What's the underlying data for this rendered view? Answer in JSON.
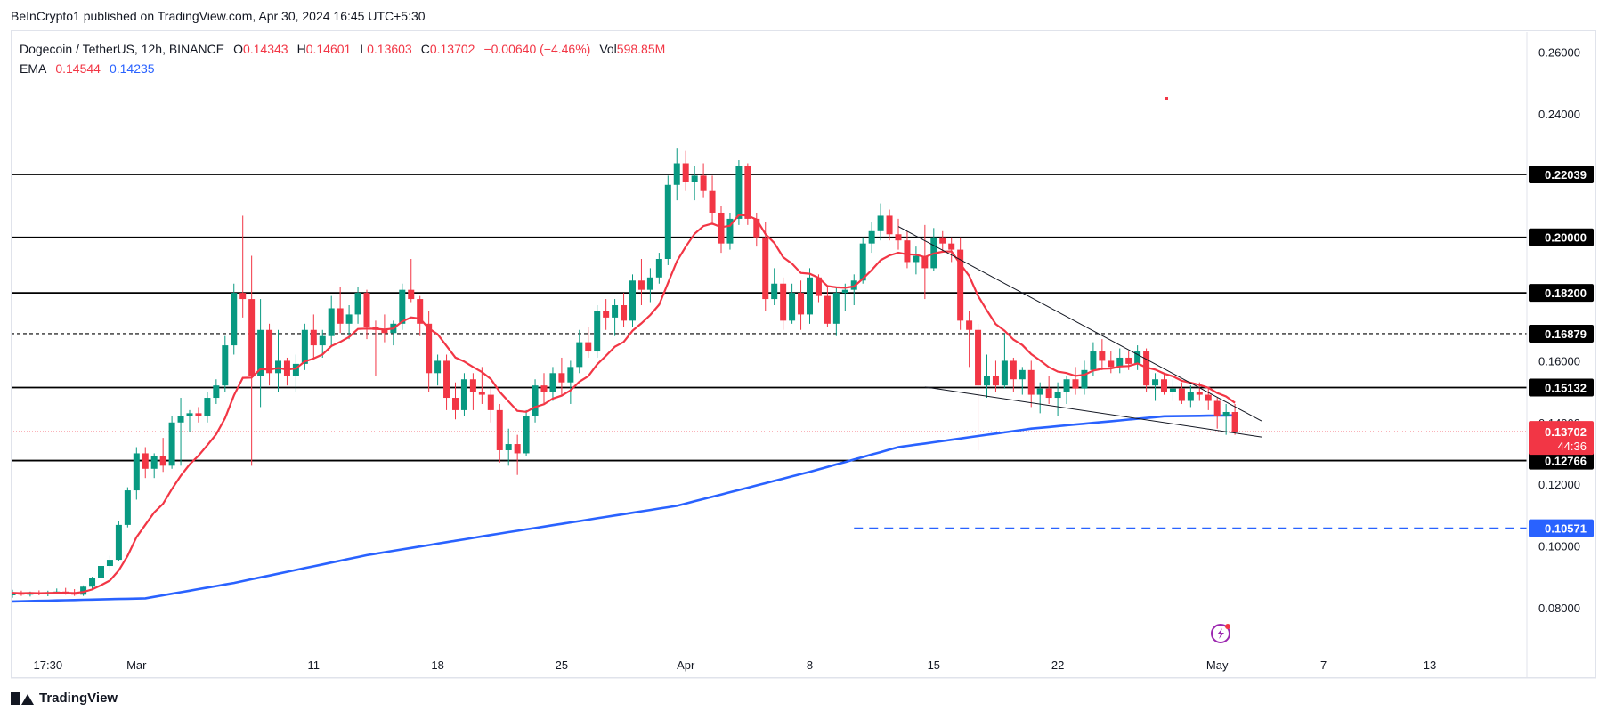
{
  "header": {
    "published": "BeInCrypto1 published on TradingView.com, Apr 30, 2024 16:45 UTC+5:30"
  },
  "legend": {
    "symbol": "Dogecoin / TetherUS, 12h, BINANCE",
    "open_label": "O",
    "open": "0.14343",
    "high_label": "H",
    "high": "0.14601",
    "low_label": "L",
    "low": "0.13603",
    "close_label": "C",
    "close": "0.13702",
    "change": "−0.00640 (−4.46%)",
    "vol_label": "Vol",
    "vol": "598.85M",
    "ema_label": "EMA",
    "ema_fast": "0.14544",
    "ema_slow": "0.14235"
  },
  "footer": {
    "brand": "TradingView"
  },
  "chart_data": {
    "type": "candlestick",
    "title": "Dogecoin / TetherUS, 12h, BINANCE",
    "ylim": [
      0.07,
      0.27
    ],
    "y_ticks": [
      "0.08000",
      "0.10000",
      "0.12000",
      "0.14000",
      "0.16000",
      "0.24000",
      "0.26000"
    ],
    "y_tick_values": [
      0.08,
      0.1,
      0.12,
      0.14,
      0.16,
      0.24,
      0.26
    ],
    "x_labels": [
      {
        "label": "17:30",
        "candle": 4
      },
      {
        "label": "Mar",
        "candle": 14
      },
      {
        "label": "11",
        "candle": 34
      },
      {
        "label": "18",
        "candle": 48
      },
      {
        "label": "25",
        "candle": 62
      },
      {
        "label": "Apr",
        "candle": 76
      },
      {
        "label": "8",
        "candle": 90
      },
      {
        "label": "15",
        "candle": 104
      },
      {
        "label": "22",
        "candle": 118
      },
      {
        "label": "May",
        "candle": 136
      },
      {
        "label": "7",
        "candle": 148
      },
      {
        "label": "13",
        "candle": 160
      }
    ],
    "candle_count_axis": 170,
    "levels": [
      {
        "value": 0.22039,
        "label": "0.22039",
        "style": "solid"
      },
      {
        "value": 0.2,
        "label": "0.20000",
        "style": "solid"
      },
      {
        "value": 0.182,
        "label": "0.18200",
        "style": "solid"
      },
      {
        "value": 0.16879,
        "label": "0.16879",
        "style": "dashed"
      },
      {
        "value": 0.15132,
        "label": "0.15132",
        "style": "solid"
      },
      {
        "value": 0.12766,
        "label": "0.12766",
        "style": "solid"
      }
    ],
    "target_level": {
      "value": 0.10571,
      "label": "0.10571",
      "from_candle": 95,
      "color": "#2962ff"
    },
    "last_price": {
      "value": 0.13702,
      "label": "0.13702",
      "countdown": "44:36",
      "color": "#f23645"
    },
    "trendlines": [
      {
        "from": [
          100,
          0.2035
        ],
        "to": [
          141,
          0.1405
        ]
      },
      {
        "from": [
          103,
          0.1515
        ],
        "to": [
          141,
          0.1353
        ]
      }
    ],
    "candles": [
      [
        0.084,
        0.0858,
        0.0832,
        0.0848
      ],
      [
        0.0848,
        0.0855,
        0.0838,
        0.0842
      ],
      [
        0.0842,
        0.0852,
        0.0836,
        0.0849
      ],
      [
        0.0849,
        0.0856,
        0.084,
        0.0845
      ],
      [
        0.0845,
        0.0855,
        0.0837,
        0.085
      ],
      [
        0.085,
        0.0862,
        0.0844,
        0.0852
      ],
      [
        0.0852,
        0.0864,
        0.0842,
        0.0848
      ],
      [
        0.0848,
        0.086,
        0.0838,
        0.0842
      ],
      [
        0.0842,
        0.0872,
        0.0838,
        0.0868
      ],
      [
        0.0868,
        0.09,
        0.086,
        0.0895
      ],
      [
        0.0895,
        0.0945,
        0.089,
        0.0935
      ],
      [
        0.0935,
        0.0968,
        0.0918,
        0.0955
      ],
      [
        0.0955,
        0.108,
        0.095,
        0.1068
      ],
      [
        0.1068,
        0.119,
        0.106,
        0.118
      ],
      [
        0.118,
        0.132,
        0.115,
        0.13
      ],
      [
        0.13,
        0.132,
        0.122,
        0.125
      ],
      [
        0.125,
        0.13,
        0.122,
        0.129
      ],
      [
        0.129,
        0.135,
        0.124,
        0.126
      ],
      [
        0.126,
        0.142,
        0.125,
        0.14
      ],
      [
        0.14,
        0.148,
        0.126,
        0.142
      ],
      [
        0.142,
        0.144,
        0.137,
        0.143
      ],
      [
        0.143,
        0.145,
        0.14,
        0.142
      ],
      [
        0.142,
        0.15,
        0.14,
        0.148
      ],
      [
        0.148,
        0.154,
        0.146,
        0.152
      ],
      [
        0.152,
        0.168,
        0.15,
        0.165
      ],
      [
        0.165,
        0.185,
        0.162,
        0.182
      ],
      [
        0.182,
        0.207,
        0.174,
        0.18
      ],
      [
        0.18,
        0.194,
        0.126,
        0.155
      ],
      [
        0.155,
        0.18,
        0.145,
        0.17
      ],
      [
        0.17,
        0.172,
        0.152,
        0.156
      ],
      [
        0.156,
        0.17,
        0.15,
        0.16
      ],
      [
        0.16,
        0.161,
        0.152,
        0.155
      ],
      [
        0.155,
        0.162,
        0.15,
        0.159
      ],
      [
        0.159,
        0.172,
        0.157,
        0.17
      ],
      [
        0.17,
        0.175,
        0.161,
        0.165
      ],
      [
        0.165,
        0.17,
        0.161,
        0.168
      ],
      [
        0.168,
        0.181,
        0.165,
        0.177
      ],
      [
        0.177,
        0.184,
        0.169,
        0.172
      ],
      [
        0.172,
        0.178,
        0.167,
        0.175
      ],
      [
        0.175,
        0.184,
        0.172,
        0.182
      ],
      [
        0.182,
        0.183,
        0.167,
        0.171
      ],
      [
        0.171,
        0.173,
        0.155,
        0.17
      ],
      [
        0.17,
        0.175,
        0.166,
        0.169
      ],
      [
        0.169,
        0.173,
        0.165,
        0.172
      ],
      [
        0.172,
        0.185,
        0.17,
        0.183
      ],
      [
        0.183,
        0.193,
        0.179,
        0.18
      ],
      [
        0.18,
        0.181,
        0.168,
        0.172
      ],
      [
        0.172,
        0.176,
        0.15,
        0.156
      ],
      [
        0.156,
        0.162,
        0.152,
        0.16
      ],
      [
        0.16,
        0.162,
        0.144,
        0.148
      ],
      [
        0.148,
        0.153,
        0.141,
        0.144
      ],
      [
        0.144,
        0.156,
        0.142,
        0.154
      ],
      [
        0.154,
        0.156,
        0.144,
        0.15
      ],
      [
        0.15,
        0.158,
        0.146,
        0.149
      ],
      [
        0.149,
        0.151,
        0.14,
        0.144
      ],
      [
        0.144,
        0.146,
        0.127,
        0.131
      ],
      [
        0.131,
        0.138,
        0.126,
        0.133
      ],
      [
        0.133,
        0.136,
        0.123,
        0.13
      ],
      [
        0.13,
        0.144,
        0.129,
        0.142
      ],
      [
        0.142,
        0.154,
        0.14,
        0.152
      ],
      [
        0.152,
        0.156,
        0.146,
        0.15
      ],
      [
        0.15,
        0.158,
        0.147,
        0.156
      ],
      [
        0.156,
        0.161,
        0.149,
        0.153
      ],
      [
        0.153,
        0.16,
        0.146,
        0.158
      ],
      [
        0.158,
        0.17,
        0.156,
        0.166
      ],
      [
        0.166,
        0.171,
        0.161,
        0.163
      ],
      [
        0.163,
        0.178,
        0.161,
        0.176
      ],
      [
        0.176,
        0.18,
        0.17,
        0.174
      ],
      [
        0.174,
        0.18,
        0.168,
        0.178
      ],
      [
        0.178,
        0.182,
        0.171,
        0.173
      ],
      [
        0.173,
        0.188,
        0.171,
        0.186
      ],
      [
        0.186,
        0.193,
        0.178,
        0.183
      ],
      [
        0.183,
        0.19,
        0.179,
        0.187
      ],
      [
        0.187,
        0.195,
        0.185,
        0.193
      ],
      [
        0.193,
        0.22,
        0.191,
        0.217
      ],
      [
        0.217,
        0.229,
        0.212,
        0.224
      ],
      [
        0.224,
        0.228,
        0.215,
        0.218
      ],
      [
        0.218,
        0.223,
        0.212,
        0.22
      ],
      [
        0.22,
        0.224,
        0.213,
        0.215
      ],
      [
        0.215,
        0.22,
        0.204,
        0.208
      ],
      [
        0.208,
        0.21,
        0.195,
        0.198
      ],
      [
        0.198,
        0.208,
        0.196,
        0.206
      ],
      [
        0.206,
        0.225,
        0.204,
        0.223
      ],
      [
        0.223,
        0.224,
        0.204,
        0.206
      ],
      [
        0.206,
        0.208,
        0.197,
        0.2
      ],
      [
        0.2,
        0.205,
        0.176,
        0.18
      ],
      [
        0.18,
        0.19,
        0.178,
        0.185
      ],
      [
        0.185,
        0.187,
        0.17,
        0.173
      ],
      [
        0.173,
        0.185,
        0.172,
        0.182
      ],
      [
        0.182,
        0.186,
        0.17,
        0.175
      ],
      [
        0.175,
        0.19,
        0.172,
        0.187
      ],
      [
        0.187,
        0.188,
        0.179,
        0.181
      ],
      [
        0.181,
        0.184,
        0.171,
        0.172
      ],
      [
        0.172,
        0.184,
        0.168,
        0.182
      ],
      [
        0.182,
        0.185,
        0.176,
        0.183
      ],
      [
        0.183,
        0.188,
        0.178,
        0.186
      ],
      [
        0.186,
        0.2,
        0.185,
        0.198
      ],
      [
        0.198,
        0.205,
        0.195,
        0.202
      ],
      [
        0.202,
        0.211,
        0.199,
        0.207
      ],
      [
        0.207,
        0.209,
        0.199,
        0.201
      ],
      [
        0.201,
        0.206,
        0.196,
        0.199
      ],
      [
        0.199,
        0.202,
        0.19,
        0.192
      ],
      [
        0.192,
        0.197,
        0.188,
        0.194
      ],
      [
        0.194,
        0.204,
        0.18,
        0.19
      ],
      [
        0.19,
        0.203,
        0.189,
        0.2
      ],
      [
        0.2,
        0.202,
        0.195,
        0.198
      ],
      [
        0.198,
        0.2,
        0.192,
        0.196
      ],
      [
        0.196,
        0.2,
        0.17,
        0.173
      ],
      [
        0.173,
        0.176,
        0.158,
        0.17
      ],
      [
        0.17,
        0.172,
        0.131,
        0.152
      ],
      [
        0.152,
        0.162,
        0.148,
        0.155
      ],
      [
        0.155,
        0.16,
        0.15,
        0.152
      ],
      [
        0.152,
        0.169,
        0.151,
        0.16
      ],
      [
        0.16,
        0.161,
        0.15,
        0.154
      ],
      [
        0.154,
        0.158,
        0.149,
        0.157
      ],
      [
        0.157,
        0.16,
        0.145,
        0.149
      ],
      [
        0.149,
        0.153,
        0.143,
        0.151
      ],
      [
        0.151,
        0.155,
        0.146,
        0.148
      ],
      [
        0.148,
        0.153,
        0.142,
        0.15
      ],
      [
        0.15,
        0.155,
        0.146,
        0.154
      ],
      [
        0.154,
        0.158,
        0.149,
        0.151
      ],
      [
        0.151,
        0.16,
        0.149,
        0.157
      ],
      [
        0.157,
        0.166,
        0.155,
        0.163
      ],
      [
        0.163,
        0.167,
        0.157,
        0.16
      ],
      [
        0.16,
        0.163,
        0.156,
        0.158
      ],
      [
        0.158,
        0.164,
        0.156,
        0.161
      ],
      [
        0.161,
        0.163,
        0.157,
        0.159
      ],
      [
        0.159,
        0.165,
        0.157,
        0.163
      ],
      [
        0.163,
        0.164,
        0.15,
        0.152
      ],
      [
        0.152,
        0.156,
        0.147,
        0.154
      ],
      [
        0.154,
        0.156,
        0.149,
        0.15
      ],
      [
        0.15,
        0.154,
        0.147,
        0.151
      ],
      [
        0.151,
        0.153,
        0.146,
        0.147
      ],
      [
        0.147,
        0.152,
        0.145,
        0.15
      ],
      [
        0.15,
        0.153,
        0.147,
        0.149
      ],
      [
        0.149,
        0.151,
        0.144,
        0.147
      ],
      [
        0.147,
        0.148,
        0.138,
        0.142
      ],
      [
        0.142,
        0.146,
        0.136,
        0.1434
      ],
      [
        0.1434,
        0.146,
        0.136,
        0.137
      ]
    ],
    "ema_fast": {
      "name": "EMA",
      "value": "0.14544",
      "color": "#f23645"
    },
    "ema_slow": {
      "name": "EMA",
      "value": "0.14235",
      "color": "#2962ff",
      "anchors": [
        [
          0,
          0.082
        ],
        [
          15,
          0.083
        ],
        [
          25,
          0.088
        ],
        [
          40,
          0.097
        ],
        [
          55,
          0.104
        ],
        [
          75,
          0.113
        ],
        [
          90,
          0.124
        ],
        [
          100,
          0.132
        ],
        [
          115,
          0.138
        ],
        [
          130,
          0.142
        ],
        [
          140,
          0.1424
        ]
      ]
    }
  }
}
